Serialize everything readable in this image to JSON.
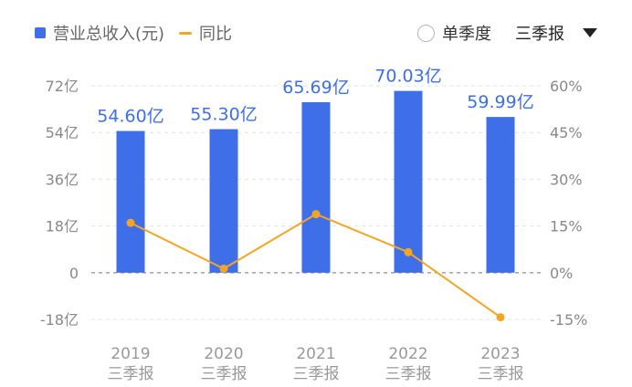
{
  "legend": {
    "revenue_label": "营业总收入(元)",
    "yoy_label": "同比"
  },
  "controls": {
    "single_quarter_label": "单季度",
    "selected_period": "三季报"
  },
  "colors": {
    "bar": "#3e6fe8",
    "line": "#f5a524",
    "grid": "#e4e4e4",
    "zero_line": "#9a9a9a"
  },
  "chart_data": {
    "type": "bar",
    "categories": [
      {
        "year": "2019",
        "period": "三季报"
      },
      {
        "year": "2020",
        "period": "三季报"
      },
      {
        "year": "2021",
        "period": "三季报"
      },
      {
        "year": "2022",
        "period": "三季报"
      },
      {
        "year": "2023",
        "period": "三季报"
      }
    ],
    "series": [
      {
        "name": "营业总收入(元)",
        "type": "bar",
        "axis": "left",
        "values": [
          54.6,
          55.3,
          65.69,
          70.03,
          59.99
        ],
        "labels": [
          "54.60亿",
          "55.30亿",
          "65.69亿",
          "70.03亿",
          "59.99亿"
        ]
      },
      {
        "name": "同比",
        "type": "line",
        "axis": "right",
        "values": [
          16.0,
          1.3,
          18.8,
          6.6,
          -14.3
        ]
      }
    ],
    "left_axis": {
      "range": [
        -18,
        72
      ],
      "ticks": [
        72,
        54,
        36,
        18,
        0,
        -18
      ],
      "tick_labels": [
        "72亿",
        "54亿",
        "36亿",
        "18亿",
        "0",
        "-18亿"
      ]
    },
    "right_axis": {
      "range": [
        -15,
        60
      ],
      "ticks": [
        60,
        45,
        30,
        15,
        0,
        -15
      ],
      "tick_labels": [
        "60%",
        "45%",
        "30%",
        "15%",
        "0%",
        "-15%"
      ]
    },
    "grid": true
  }
}
